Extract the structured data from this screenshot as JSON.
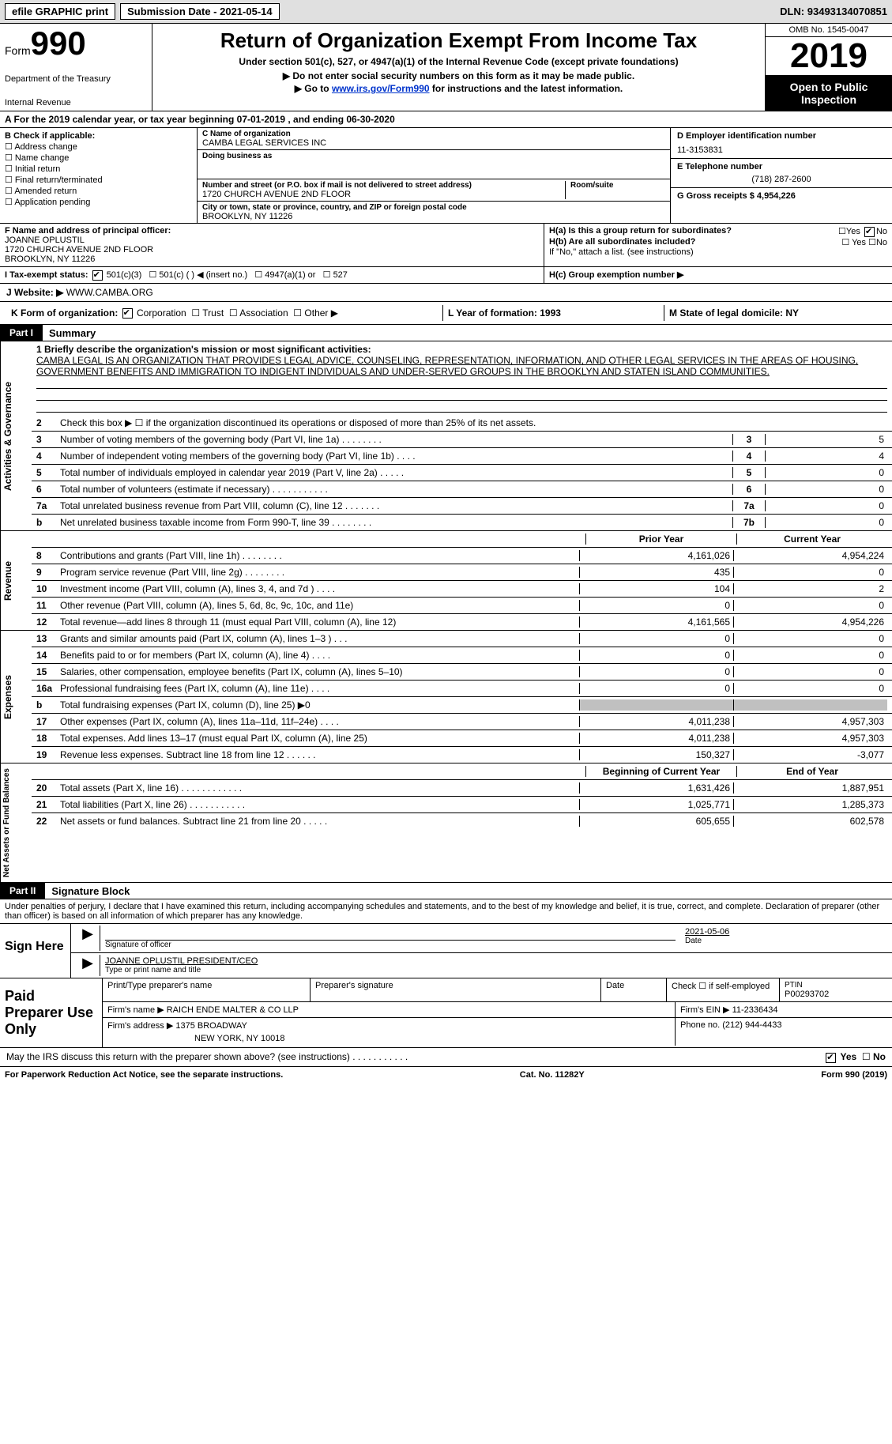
{
  "topbar": {
    "efile": "efile GRAPHIC print",
    "subdate_label": "Submission Date - ",
    "subdate": "2021-05-14",
    "dln_label": "DLN: ",
    "dln": "93493134070851"
  },
  "header": {
    "form_word": "Form",
    "form_num": "990",
    "dept1": "Department of the Treasury",
    "dept2": "Internal Revenue ",
    "title": "Return of Organization Exempt From Income Tax",
    "sub": "Under section 501(c), 527, or 4947(a)(1) of the Internal Revenue Code (except private foundations)",
    "arrow1": "▶ Do not enter social security numbers on this form as it may be made public.",
    "arrow2_pre": "▶ Go to ",
    "arrow2_link": "www.irs.gov/Form990",
    "arrow2_post": " for instructions and the latest information.",
    "omb": "OMB No. 1545-0047",
    "year": "2019",
    "open_pub": "Open to Public Inspection"
  },
  "period": "A For the 2019 calendar year, or tax year beginning 07-01-2019    , and ending 06-30-2020",
  "checkB": {
    "title": "B Check if applicable:",
    "opts": [
      "Address change",
      "Name change",
      "Initial return",
      "Final return/terminated",
      "Amended return",
      "Application pending"
    ]
  },
  "org": {
    "name_label": "C Name of organization",
    "name": "CAMBA LEGAL SERVICES INC",
    "dba_label": "Doing business as",
    "addr_label": "Number and street (or P.O. box if mail is not delivered to street address)",
    "room_label": "Room/suite",
    "addr": "1720 CHURCH AVENUE 2ND FLOOR",
    "city_label": "City or town, state or province, country, and ZIP or foreign postal code",
    "city": "BROOKLYN, NY  11226"
  },
  "right": {
    "ein_label": "D Employer identification number",
    "ein": "11-3153831",
    "phone_label": "E Telephone number",
    "phone": "(718) 287-2600",
    "gross_label": "G Gross receipts $ ",
    "gross": "4,954,226"
  },
  "officer": {
    "flabel": "F  Name and address of principal officer:",
    "name": "JOANNE OPLUSTIL",
    "addr1": "1720 CHURCH AVENUE 2ND FLOOR",
    "addr2": "BROOKLYN, NY  11226"
  },
  "hblock": {
    "ha": "H(a)  Is this a group return for subordinates?",
    "ha_yes": "Yes",
    "ha_no": "No",
    "hb": "H(b)  Are all subordinates included?",
    "hb_note": "If \"No,\" attach a list. (see instructions)",
    "hc": "H(c)  Group exemption number ▶"
  },
  "taxstatus": {
    "label": "I   Tax-exempt status:",
    "opts": [
      "501(c)(3)",
      "501(c) (  ) ◀ (insert no.)",
      "4947(a)(1) or",
      "527"
    ]
  },
  "website": {
    "label": "J   Website: ▶ ",
    "val": "WWW.CAMBA.ORG"
  },
  "formorg": {
    "label": "K Form of organization:",
    "opts": [
      "Corporation",
      "Trust",
      "Association",
      "Other ▶"
    ]
  },
  "formation": {
    "yof": "L Year of formation: 1993",
    "state": "M State of legal domicile: NY"
  },
  "parts": {
    "p1": "Part I",
    "p1_title": "Summary",
    "p2": "Part II",
    "p2_title": "Signature Block"
  },
  "mission": {
    "lead": "1   Briefly describe the organization's mission or most significant activities:",
    "text": "CAMBA LEGAL IS AN ORGANIZATION THAT PROVIDES LEGAL ADVICE, COUNSELING, REPRESENTATION, INFORMATION, AND OTHER LEGAL SERVICES IN THE AREAS OF HOUSING, GOVERNMENT BENEFITS AND IMMIGRATION TO INDIGENT INDIVIDUALS AND UNDER-SERVED GROUPS IN THE BROOKLYN AND STATEN ISLAND COMMUNITIES."
  },
  "gov_lines": [
    {
      "n": "2",
      "d": "Check this box ▶ ☐  if the organization discontinued its operations or disposed of more than 25% of its net assets."
    },
    {
      "n": "3",
      "d": "Number of voting members of the governing body (Part VI, line 1a)   .    .    .    .    .    .    .    .",
      "a": "3",
      "v": "5"
    },
    {
      "n": "4",
      "d": "Number of independent voting members of the governing body (Part VI, line 1b)    .    .    .    .",
      "a": "4",
      "v": "4"
    },
    {
      "n": "5",
      "d": "Total number of individuals employed in calendar year 2019 (Part V, line 2a)   .    .    .    .    .",
      "a": "5",
      "v": "0"
    },
    {
      "n": "6",
      "d": "Total number of volunteers (estimate if necessary)    .    .    .    .    .    .    .    .    .    .    .",
      "a": "6",
      "v": "0"
    },
    {
      "n": "7a",
      "d": "Total unrelated business revenue from Part VIII, column (C), line 12    .    .    .    .    .    .    .",
      "a": "7a",
      "v": "0"
    },
    {
      "n": "b",
      "d": "Net unrelated business taxable income from Form 990-T, line 39    .    .    .    .    .    .    .    .",
      "a": "7b",
      "v": "0"
    }
  ],
  "col_headers": {
    "prior": "Prior Year",
    "curr": "Current Year"
  },
  "revenue": [
    {
      "n": "8",
      "d": "Contributions and grants (Part VIII, line 1h)    .    .    .    .    .    .    .    .",
      "p": "4,161,026",
      "c": "4,954,224"
    },
    {
      "n": "9",
      "d": "Program service revenue (Part VIII, line 2g)    .    .    .    .    .    .    .    .",
      "p": "435",
      "c": "0"
    },
    {
      "n": "10",
      "d": "Investment income (Part VIII, column (A), lines 3, 4, and 7d )    .    .    .    .",
      "p": "104",
      "c": "2"
    },
    {
      "n": "11",
      "d": "Other revenue (Part VIII, column (A), lines 5, 6d, 8c, 9c, 10c, and 11e)",
      "p": "0",
      "c": "0"
    },
    {
      "n": "12",
      "d": "Total revenue—add lines 8 through 11 (must equal Part VIII, column (A), line 12)",
      "p": "4,161,565",
      "c": "4,954,226"
    }
  ],
  "expenses": [
    {
      "n": "13",
      "d": "Grants and similar amounts paid (Part IX, column (A), lines 1–3 )   .    .    .",
      "p": "0",
      "c": "0"
    },
    {
      "n": "14",
      "d": "Benefits paid to or for members (Part IX, column (A), line 4)   .    .    .    .",
      "p": "0",
      "c": "0"
    },
    {
      "n": "15",
      "d": "Salaries, other compensation, employee benefits (Part IX, column (A), lines 5–10)",
      "p": "0",
      "c": "0"
    },
    {
      "n": "16a",
      "d": "Professional fundraising fees (Part IX, column (A), line 11e)   .    .    .    .",
      "p": "0",
      "c": "0"
    },
    {
      "n": "b",
      "d": "Total fundraising expenses (Part IX, column (D), line 25) ▶0",
      "p": "grey",
      "c": "grey"
    },
    {
      "n": "17",
      "d": "Other expenses (Part IX, column (A), lines 11a–11d, 11f–24e)   .    .    .    .",
      "p": "4,011,238",
      "c": "4,957,303"
    },
    {
      "n": "18",
      "d": "Total expenses. Add lines 13–17 (must equal Part IX, column (A), line 25)",
      "p": "4,011,238",
      "c": "4,957,303"
    },
    {
      "n": "19",
      "d": "Revenue less expenses. Subtract line 18 from line 12   .    .    .    .    .    .",
      "p": "150,327",
      "c": "-3,077"
    }
  ],
  "net_headers": {
    "beg": "Beginning of Current Year",
    "end": "End of Year"
  },
  "netassets": [
    {
      "n": "20",
      "d": "Total assets (Part X, line 16)   .    .    .    .    .    .    .    .    .    .    .    .",
      "p": "1,631,426",
      "c": "1,887,951"
    },
    {
      "n": "21",
      "d": "Total liabilities (Part X, line 26)   .    .    .    .    .    .    .    .    .    .    .",
      "p": "1,025,771",
      "c": "1,285,373"
    },
    {
      "n": "22",
      "d": "Net assets or fund balances. Subtract line 21 from line 20   .    .    .    .    .",
      "p": "605,655",
      "c": "602,578"
    }
  ],
  "vtabs": {
    "gov": "Activities & Governance",
    "rev": "Revenue",
    "exp": "Expenses",
    "net": "Net Assets or Fund Balances"
  },
  "sigblock": {
    "perjury": "Under penalties of perjury, I declare that I have examined this return, including accompanying schedules and statements, and to the best of my knowledge and belief, it is true, correct, and complete. Declaration of preparer (other than officer) is based on all information of which preparer has any knowledge.",
    "sign_here": "Sign Here",
    "sig_officer": "Signature of officer",
    "date_label": "Date",
    "sig_date": "2021-05-06",
    "name_title": "JOANNE OPLUSTIL PRESIDENT/CEO",
    "type_label": "Type or print name and title"
  },
  "preparer": {
    "label": "Paid Preparer Use Only",
    "cols": [
      "Print/Type preparer's name",
      "Preparer's signature",
      "Date"
    ],
    "check_self": "Check ☐ if self-employed",
    "ptin_label": "PTIN",
    "ptin": "P00293702",
    "firm_name_label": "Firm's name    ▶ ",
    "firm_name": "RAICH ENDE MALTER & CO LLP",
    "firm_ein_label": "Firm's EIN ▶ ",
    "firm_ein": "11-2336434",
    "firm_addr_label": "Firm's address ▶ ",
    "firm_addr1": "1375 BROADWAY",
    "firm_addr2": "NEW YORK, NY  10018",
    "phone_label": "Phone no. ",
    "phone": "(212) 944-4433"
  },
  "discuss": "May the IRS discuss this return with the preparer shown above? (see instructions)    .    .    .    .    .    .    .    .    .    .    .",
  "discuss_yes": "Yes",
  "discuss_no": "No",
  "footer": {
    "pra": "For Paperwork Reduction Act Notice, see the separate instructions.",
    "cat": "Cat. No. 11282Y",
    "form": "Form 990 (2019)"
  }
}
